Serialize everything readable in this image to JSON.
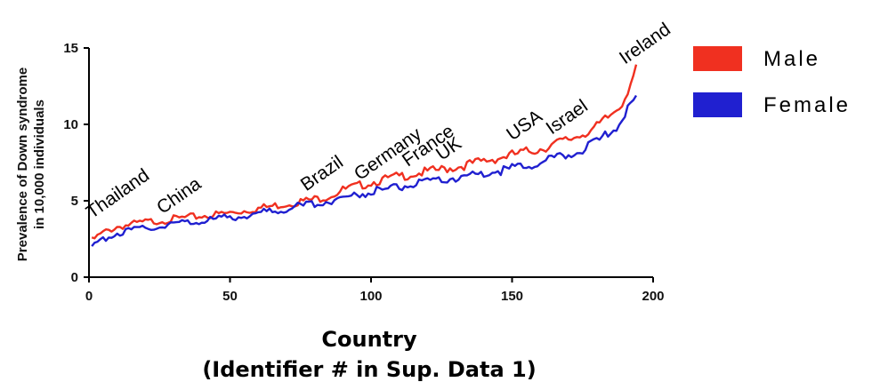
{
  "chart_data": {
    "type": "line",
    "title": "",
    "ylabel_line1": "Prevalence of Down syndrome",
    "ylabel_line2": "in 10,000 individuals",
    "xlabel_line1": "Country",
    "xlabel_line2": "(Identifier # in Sup. Data 1)",
    "xlim": [
      0,
      200
    ],
    "ylim": [
      0,
      15
    ],
    "xticks": [
      0,
      50,
      100,
      150,
      200
    ],
    "yticks": [
      0,
      5,
      10,
      15
    ],
    "grid": false,
    "legend_position": "right",
    "series": [
      {
        "name": "Male",
        "color": "#f03020",
        "points": [
          [
            1,
            2.4
          ],
          [
            5,
            2.9
          ],
          [
            10,
            3.3
          ],
          [
            20,
            3.6
          ],
          [
            30,
            3.8
          ],
          [
            40,
            4.0
          ],
          [
            50,
            4.2
          ],
          [
            60,
            4.5
          ],
          [
            70,
            4.8
          ],
          [
            80,
            5.1
          ],
          [
            85,
            5.3
          ],
          [
            90,
            5.7
          ],
          [
            100,
            6.2
          ],
          [
            110,
            6.6
          ],
          [
            120,
            6.9
          ],
          [
            130,
            7.2
          ],
          [
            140,
            7.6
          ],
          [
            150,
            8.0
          ],
          [
            160,
            8.4
          ],
          [
            170,
            9.0
          ],
          [
            180,
            9.8
          ],
          [
            185,
            10.6
          ],
          [
            188,
            11.2
          ],
          [
            190,
            11.8
          ],
          [
            192,
            12.8
          ],
          [
            194,
            13.5
          ]
        ]
      },
      {
        "name": "Female",
        "color": "#2020d0",
        "points": [
          [
            1,
            1.9
          ],
          [
            5,
            2.5
          ],
          [
            10,
            2.9
          ],
          [
            20,
            3.2
          ],
          [
            30,
            3.5
          ],
          [
            40,
            3.7
          ],
          [
            50,
            3.9
          ],
          [
            60,
            4.2
          ],
          [
            70,
            4.5
          ],
          [
            80,
            4.8
          ],
          [
            85,
            5.0
          ],
          [
            90,
            5.2
          ],
          [
            100,
            5.6
          ],
          [
            110,
            5.9
          ],
          [
            120,
            6.2
          ],
          [
            130,
            6.5
          ],
          [
            140,
            6.8
          ],
          [
            150,
            7.1
          ],
          [
            160,
            7.5
          ],
          [
            170,
            8.0
          ],
          [
            180,
            8.8
          ],
          [
            185,
            9.5
          ],
          [
            188,
            10.1
          ],
          [
            190,
            10.6
          ],
          [
            192,
            11.2
          ],
          [
            194,
            11.8
          ]
        ]
      }
    ],
    "annotations": [
      {
        "text": "Thailand",
        "x": 1,
        "y": 3.8
      },
      {
        "text": "China",
        "x": 26,
        "y": 4.1
      },
      {
        "text": "Brazil",
        "x": 77,
        "y": 5.6
      },
      {
        "text": "Germany",
        "x": 96,
        "y": 6.3
      },
      {
        "text": "France",
        "x": 113,
        "y": 7.2
      },
      {
        "text": "UK",
        "x": 125,
        "y": 7.6
      },
      {
        "text": "USA",
        "x": 150,
        "y": 8.9
      },
      {
        "text": "Israel",
        "x": 164,
        "y": 9.3
      },
      {
        "text": "Ireland",
        "x": 190,
        "y": 13.9
      }
    ]
  }
}
